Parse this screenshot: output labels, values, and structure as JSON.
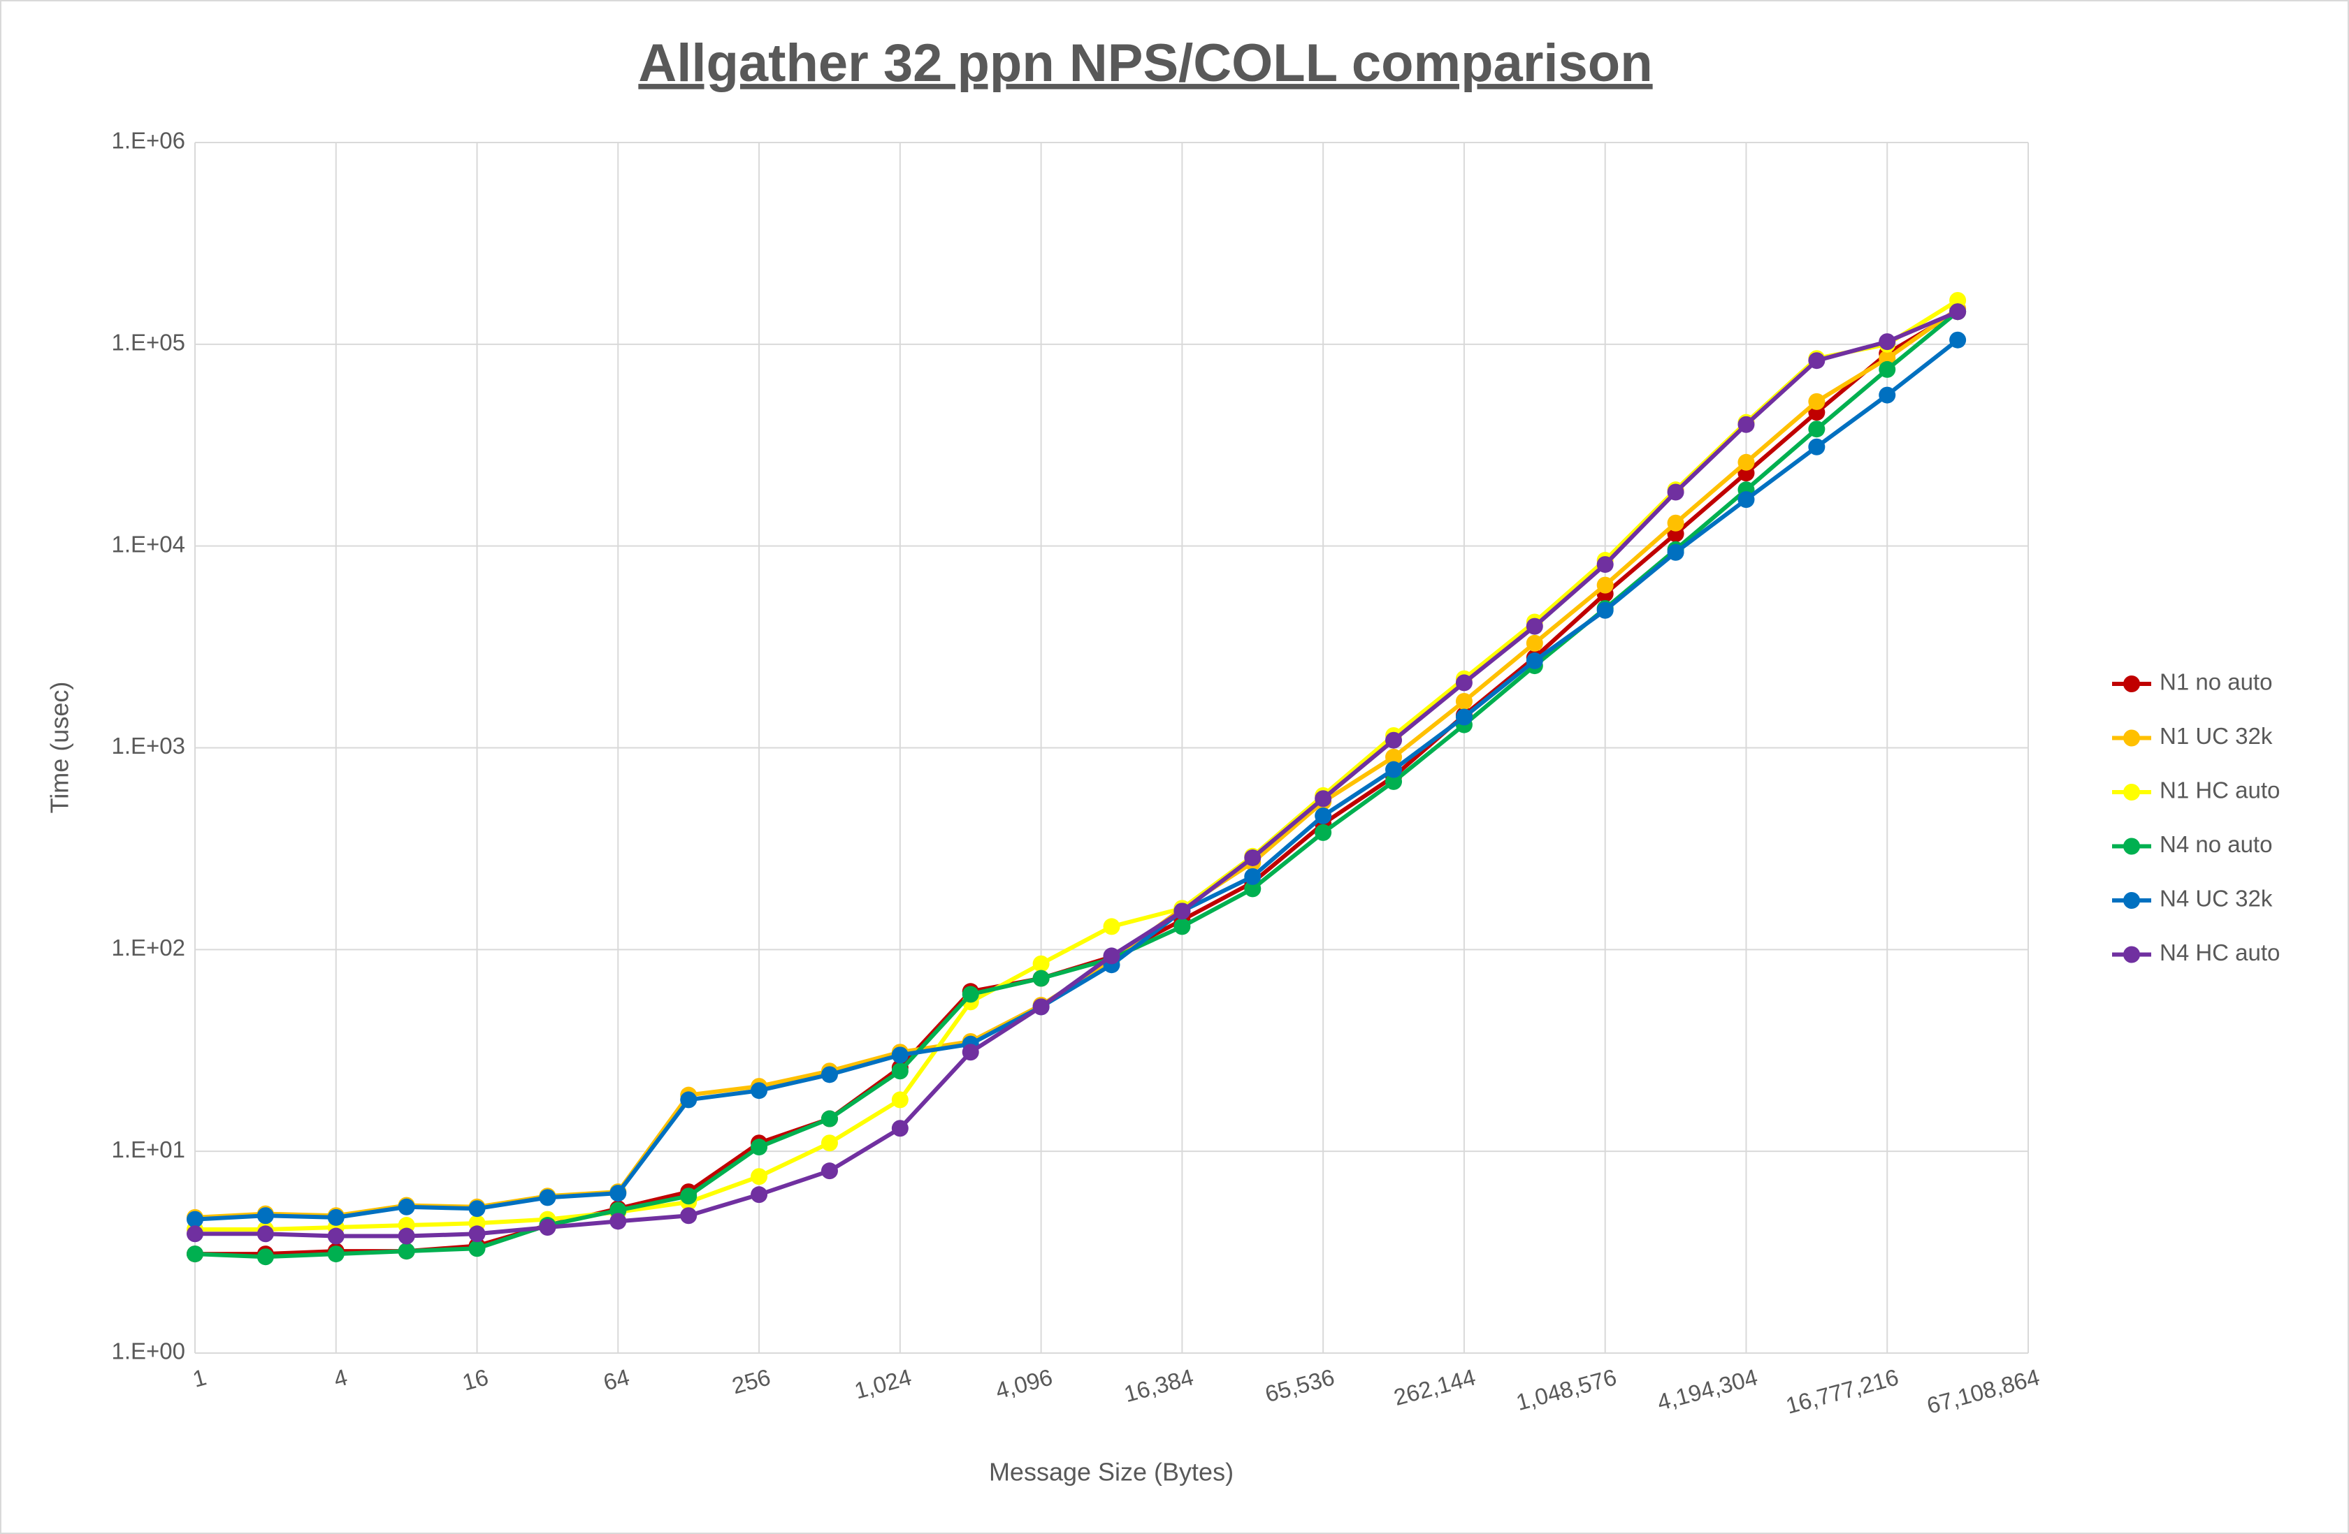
{
  "chart_data": {
    "type": "line",
    "title": "Allgather 32 ppn NPS/COLL comparison",
    "x_label": "Message Size (Bytes)",
    "y_label": "Time (usec)",
    "x": [
      1,
      2,
      4,
      8,
      16,
      32,
      64,
      128,
      256,
      512,
      1024,
      2048,
      4096,
      8192,
      16384,
      32768,
      65536,
      131072,
      262144,
      524288,
      1048576,
      2097152,
      4194304,
      8388608,
      16777216,
      33554432
    ],
    "xscale": "log2",
    "yscale": "log10",
    "xlim": [
      1,
      67108864
    ],
    "ylim": [
      1,
      1000000
    ],
    "xticks": [
      1,
      4,
      16,
      64,
      256,
      {
        "value": 1024,
        "label": "1,024"
      },
      {
        "value": 4096,
        "label": "4,096"
      },
      {
        "value": 16384,
        "label": "16,384"
      },
      {
        "value": 65536,
        "label": "65,536"
      },
      {
        "value": 262144,
        "label": "262,144"
      },
      {
        "value": 1048576,
        "label": "1,048,576"
      },
      {
        "value": 4194304,
        "label": "4,194,304"
      },
      {
        "value": 16777216,
        "label": "16,777,216"
      },
      {
        "value": 67108864,
        "label": "67,108,864"
      }
    ],
    "yticks": [
      {
        "value": 1,
        "label": "1.E+00"
      },
      {
        "value": 10,
        "label": "1.E+01"
      },
      {
        "value": 100,
        "label": "1.E+02"
      },
      {
        "value": 1000,
        "label": "1.E+03"
      },
      {
        "value": 10000,
        "label": "1.E+04"
      },
      {
        "value": 100000,
        "label": "1.E+05"
      },
      {
        "value": 1000000,
        "label": "1.E+06"
      }
    ],
    "grid": true,
    "legend": "right",
    "series": [
      {
        "name": "N1 no auto",
        "color": "#c00000",
        "values": [
          3.1,
          3.1,
          3.2,
          3.2,
          3.4,
          4.3,
          5.2,
          6.3,
          11,
          14.5,
          26,
          62,
          72,
          92,
          140,
          215,
          420,
          720,
          1450,
          2800,
          5800,
          11500,
          23000,
          46000,
          90000,
          145000
        ]
      },
      {
        "name": "N1 UC 32k",
        "color": "#ffc000",
        "values": [
          4.7,
          4.9,
          4.8,
          5.4,
          5.3,
          6.0,
          6.3,
          19,
          21,
          25,
          31,
          35,
          53,
          88,
          160,
          270,
          540,
          900,
          1700,
          3300,
          6400,
          13000,
          26000,
          52000,
          85000,
          150000
        ]
      },
      {
        "name": "N1 HC auto",
        "color": "#ffff00",
        "values": [
          4.1,
          4.1,
          4.2,
          4.3,
          4.4,
          4.6,
          5.0,
          5.6,
          7.5,
          11,
          18,
          55,
          85,
          130,
          160,
          290,
          580,
          1150,
          2200,
          4200,
          8500,
          19000,
          41000,
          85000,
          100000,
          165000
        ]
      },
      {
        "name": "N4 no auto",
        "color": "#00b050",
        "values": [
          3.1,
          3.0,
          3.1,
          3.2,
          3.3,
          4.3,
          5.1,
          6.0,
          10.5,
          14.5,
          25,
          60,
          72,
          90,
          130,
          200,
          380,
          680,
          1300,
          2550,
          4900,
          9600,
          19000,
          38000,
          75000,
          145000
        ]
      },
      {
        "name": "N4 UC 32k",
        "color": "#0070c0",
        "values": [
          4.6,
          4.8,
          4.7,
          5.3,
          5.2,
          5.9,
          6.2,
          18,
          20,
          24,
          30,
          34,
          52,
          84,
          155,
          230,
          460,
          780,
          1420,
          2700,
          4800,
          9300,
          17000,
          31000,
          56000,
          105000
        ]
      },
      {
        "name": "N4 HC auto",
        "color": "#7030a0",
        "values": [
          3.9,
          3.9,
          3.8,
          3.8,
          3.9,
          4.2,
          4.5,
          4.8,
          6.1,
          8.0,
          13,
          31,
          52,
          93,
          155,
          285,
          560,
          1090,
          2100,
          4000,
          8100,
          18500,
          40000,
          83000,
          103000,
          145000
        ]
      }
    ]
  }
}
